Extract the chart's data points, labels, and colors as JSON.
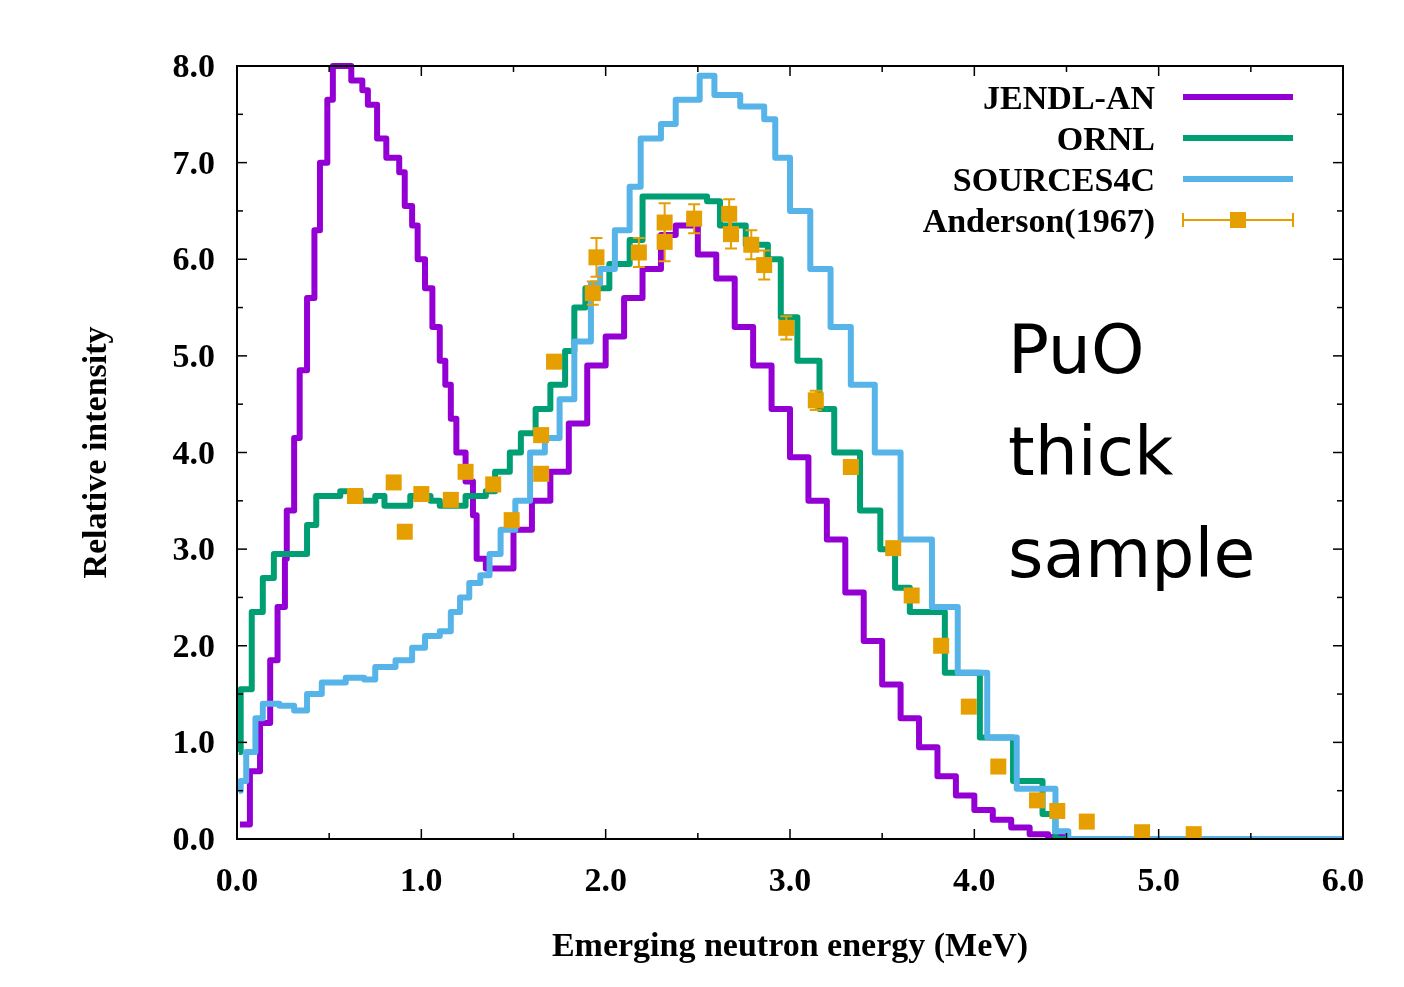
{
  "chart_data": {
    "type": "step",
    "xlabel": "Emerging neutron energy (MeV)",
    "ylabel": "Relative intensity",
    "xlim": [
      0,
      6
    ],
    "ylim": [
      0,
      8
    ],
    "xticks": [
      {
        "value": 0,
        "label": "0.0"
      },
      {
        "value": 0.5,
        "label": null
      },
      {
        "value": 1,
        "label": "1.0"
      },
      {
        "value": 1.5,
        "label": null
      },
      {
        "value": 2,
        "label": "2.0"
      },
      {
        "value": 2.5,
        "label": null
      },
      {
        "value": 3,
        "label": "3.0"
      },
      {
        "value": 3.5,
        "label": null
      },
      {
        "value": 4,
        "label": "4.0"
      },
      {
        "value": 4.5,
        "label": null
      },
      {
        "value": 5,
        "label": "5.0"
      },
      {
        "value": 5.5,
        "label": null
      },
      {
        "value": 6,
        "label": "6.0"
      }
    ],
    "yticks": [
      {
        "value": 0,
        "label": "0.0"
      },
      {
        "value": 0.5,
        "label": null
      },
      {
        "value": 1,
        "label": "1.0"
      },
      {
        "value": 1.5,
        "label": null
      },
      {
        "value": 2,
        "label": "2.0"
      },
      {
        "value": 2.5,
        "label": null
      },
      {
        "value": 3,
        "label": "3.0"
      },
      {
        "value": 3.5,
        "label": null
      },
      {
        "value": 4,
        "label": "4.0"
      },
      {
        "value": 4.5,
        "label": null
      },
      {
        "value": 5,
        "label": "5.0"
      },
      {
        "value": 5.5,
        "label": null
      },
      {
        "value": 6,
        "label": "6.0"
      },
      {
        "value": 6.5,
        "label": null
      },
      {
        "value": 7,
        "label": "7.0"
      },
      {
        "value": 7.5,
        "label": null
      },
      {
        "value": 8,
        "label": "8.0"
      }
    ],
    "grid": false,
    "legend": "top right",
    "annotations": [
      "PuO\nthick\nsample"
    ],
    "series": [
      {
        "name": "JENDL-AN",
        "color": "#9400d3",
        "x": [
          0.016,
          0.07,
          0.125,
          0.18,
          0.22,
          0.26,
          0.27,
          0.31,
          0.34,
          0.38,
          0.42,
          0.45,
          0.49,
          0.52,
          0.59,
          0.62,
          0.68,
          0.71,
          0.76,
          0.81,
          0.88,
          0.91,
          0.95,
          0.98,
          1.02,
          1.06,
          1.1,
          1.13,
          1.16,
          1.19,
          1.24,
          1.28,
          1.3,
          1.35,
          1.5,
          1.6,
          1.7,
          1.8,
          1.9,
          2.0,
          2.1,
          2.2,
          2.3,
          2.38,
          2.5,
          2.6,
          2.7,
          2.8,
          2.9,
          3.0,
          3.1,
          3.2,
          3.3,
          3.4,
          3.5,
          3.6,
          3.7,
          3.8,
          3.9,
          4.0,
          4.1,
          4.2,
          4.3,
          4.4,
          4.5,
          6.0
        ],
        "values": [
          0.15,
          0.7,
          1.2,
          1.85,
          2.4,
          2.9,
          3.4,
          4.15,
          4.85,
          5.6,
          6.3,
          7.0,
          7.65,
          8.0,
          8.0,
          7.85,
          7.75,
          7.6,
          7.25,
          7.05,
          6.9,
          6.55,
          6.35,
          6.0,
          5.7,
          5.3,
          4.95,
          4.7,
          4.35,
          4.0,
          3.7,
          3.35,
          2.9,
          2.8,
          3.2,
          3.5,
          3.8,
          4.3,
          4.9,
          5.2,
          5.6,
          5.9,
          6.25,
          6.35,
          6.05,
          5.8,
          5.3,
          4.9,
          4.45,
          3.95,
          3.5,
          3.1,
          2.55,
          2.05,
          1.6,
          1.25,
          0.95,
          0.65,
          0.45,
          0.3,
          0.2,
          0.12,
          0.05,
          0.02,
          0,
          0
        ]
      },
      {
        "name": "ORNL",
        "color": "#009e73",
        "x": [
          0.01,
          0.02,
          0.08,
          0.14,
          0.2,
          0.34,
          0.38,
          0.43,
          0.56,
          0.67,
          0.75,
          0.8,
          0.94,
          1.05,
          1.1,
          1.24,
          1.35,
          1.4,
          1.48,
          1.54,
          1.62,
          1.7,
          1.78,
          1.83,
          1.89,
          2.02,
          2.13,
          2.2,
          2.32,
          2.46,
          2.55,
          2.62,
          2.76,
          2.88,
          2.95,
          3.04,
          3.16,
          3.24,
          3.38,
          3.49,
          3.57,
          3.65,
          3.84,
          4.03,
          4.21,
          4.37,
          4.44,
          6.0
        ],
        "values": [
          0.9,
          1.55,
          2.35,
          2.7,
          2.95,
          2.95,
          3.25,
          3.55,
          3.6,
          3.5,
          3.55,
          3.45,
          3.55,
          3.5,
          3.45,
          3.55,
          3.6,
          3.8,
          4.0,
          4.2,
          4.45,
          4.7,
          5.05,
          5.5,
          5.7,
          5.95,
          6.2,
          6.65,
          6.65,
          6.65,
          6.6,
          6.35,
          6.15,
          6.0,
          5.4,
          4.95,
          4.45,
          4.0,
          3.4,
          3.0,
          2.6,
          2.35,
          1.72,
          1.05,
          0.6,
          0.26,
          0,
          0
        ]
      },
      {
        "name": "SOURCES4C",
        "color": "#56b4e9",
        "x": [
          0.01,
          0.02,
          0.05,
          0.1,
          0.14,
          0.23,
          0.31,
          0.38,
          0.46,
          0.59,
          0.69,
          0.75,
          0.86,
          0.95,
          1.02,
          1.1,
          1.16,
          1.21,
          1.26,
          1.32,
          1.37,
          1.43,
          1.51,
          1.59,
          1.67,
          1.75,
          1.83,
          1.92,
          1.97,
          2.05,
          2.13,
          2.19,
          2.3,
          2.38,
          2.51,
          2.59,
          2.73,
          2.86,
          2.92,
          3.0,
          3.11,
          3.22,
          3.33,
          3.46,
          3.6,
          3.77,
          3.91,
          4.07,
          4.23,
          4.44,
          4.51,
          6.0
        ],
        "values": [
          0.5,
          0.6,
          0.9,
          1.25,
          1.4,
          1.38,
          1.33,
          1.5,
          1.62,
          1.67,
          1.65,
          1.78,
          1.85,
          1.98,
          2.1,
          2.15,
          2.35,
          2.5,
          2.65,
          2.73,
          2.95,
          3.2,
          3.5,
          4.0,
          4.15,
          4.55,
          5.15,
          5.75,
          5.9,
          6.3,
          6.75,
          7.25,
          7.4,
          7.65,
          7.9,
          7.7,
          7.58,
          7.45,
          7.05,
          6.5,
          5.9,
          5.3,
          4.7,
          4.0,
          3.1,
          2.4,
          1.72,
          1.05,
          0.52,
          0.08,
          0,
          0
        ]
      },
      {
        "name": "Anderson(1967)",
        "type": "scatter",
        "color": "#e69f00",
        "marker": "square",
        "x": [
          0.64,
          0.85,
          0.91,
          1.0,
          1.16,
          1.24,
          1.39,
          1.49,
          1.65,
          1.65,
          1.72,
          1.93,
          1.95,
          2.18,
          2.32,
          2.32,
          2.48,
          2.67,
          2.68,
          2.79,
          2.86,
          2.98,
          3.14,
          3.33,
          3.56,
          3.66,
          3.82,
          3.97,
          4.13,
          4.34,
          4.45,
          4.61,
          4.91,
          5.19
        ],
        "values": [
          3.55,
          3.69,
          3.18,
          3.57,
          3.51,
          3.8,
          3.67,
          3.3,
          3.78,
          4.18,
          4.94,
          5.65,
          6.02,
          6.07,
          6.18,
          6.38,
          6.42,
          6.47,
          6.26,
          6.15,
          5.94,
          5.29,
          4.54,
          3.85,
          3.01,
          2.52,
          2.0,
          1.37,
          0.75,
          0.4,
          0.29,
          0.18,
          0.07,
          0.05
        ],
        "errors": [
          null,
          null,
          null,
          null,
          null,
          null,
          null,
          null,
          null,
          null,
          null,
          0.12,
          0.2,
          0.15,
          0.2,
          0.2,
          0.15,
          0.15,
          0.15,
          0.15,
          0.15,
          0.12,
          0.1,
          null,
          null,
          null,
          null,
          null,
          null,
          null,
          null,
          null,
          null,
          null
        ]
      }
    ]
  }
}
